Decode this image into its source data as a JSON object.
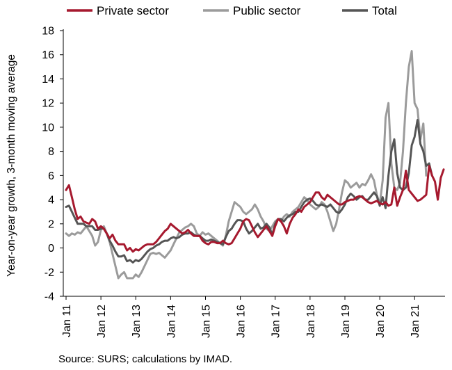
{
  "chart_data": {
    "type": "line",
    "ylabel": "Year-on-year growth, 3-month moving average",
    "xlabel": "",
    "ylim": [
      -4,
      18
    ],
    "y_ticks": [
      -4,
      -2,
      0,
      2,
      4,
      6,
      8,
      10,
      12,
      14,
      16,
      18
    ],
    "x_ticks": [
      "Jan 11",
      "Jan 12",
      "Jan 13",
      "Jan 14",
      "Jan 15",
      "Jan 16",
      "Jan 17",
      "Jan 18",
      "Jan 19",
      "Jan 20",
      "Jan 21"
    ],
    "x_start": "Jan 11",
    "x_end": "Sep 21",
    "legend_position": "top",
    "grid": false,
    "series": [
      {
        "name": "Private sector",
        "color": "#a6192e",
        "values": [
          4.8,
          5.2,
          4.2,
          3.2,
          2.4,
          2.6,
          2.2,
          2.1,
          2.0,
          2.4,
          2.2,
          1.6,
          1.8,
          1.6,
          1.2,
          0.8,
          1.1,
          0.6,
          0.3,
          0.3,
          0.3,
          -0.2,
          0.0,
          -0.3,
          -0.1,
          -0.2,
          0.0,
          0.2,
          0.3,
          0.3,
          0.3,
          0.5,
          0.8,
          1.1,
          1.4,
          1.6,
          2.0,
          1.8,
          1.6,
          1.4,
          1.2,
          1.3,
          1.5,
          1.2,
          1.0,
          1.0,
          1.0,
          0.6,
          0.4,
          0.3,
          0.5,
          0.5,
          0.4,
          0.4,
          0.6,
          0.4,
          0.3,
          0.4,
          0.8,
          1.2,
          1.6,
          2.2,
          2.4,
          2.3,
          1.8,
          1.3,
          0.9,
          1.2,
          1.5,
          1.8,
          1.4,
          1.0,
          1.8,
          2.4,
          2.2,
          1.8,
          1.2,
          2.0,
          2.5,
          2.8,
          3.2,
          3.0,
          3.4,
          3.6,
          3.8,
          4.2,
          4.6,
          4.6,
          4.2,
          4.0,
          4.4,
          4.2,
          4.0,
          3.8,
          3.6,
          3.6,
          3.8,
          3.9,
          4.0,
          4.0,
          4.2,
          4.3,
          4.2,
          4.0,
          3.8,
          3.7,
          3.8,
          3.9,
          3.7,
          3.6,
          3.8,
          3.5,
          3.6,
          5.0,
          3.5,
          4.2,
          4.8,
          6.4,
          4.8,
          4.5,
          4.2,
          3.9,
          4.0,
          4.2,
          4.4,
          6.8,
          6.0,
          5.5,
          4.0,
          5.8,
          6.5
        ]
      },
      {
        "name": "Public sector",
        "color": "#9b9b9b",
        "values": [
          1.2,
          1.0,
          1.2,
          1.1,
          1.3,
          1.2,
          1.5,
          1.8,
          1.4,
          1.0,
          0.2,
          0.5,
          1.5,
          1.8,
          1.2,
          0.5,
          -0.5,
          -1.5,
          -2.5,
          -2.2,
          -2.0,
          -2.5,
          -2.5,
          -2.5,
          -2.2,
          -2.4,
          -2.0,
          -1.5,
          -1.0,
          -0.5,
          -0.4,
          -0.5,
          -0.4,
          -0.6,
          -0.8,
          -0.5,
          -0.2,
          0.3,
          0.8,
          1.3,
          1.5,
          1.7,
          1.8,
          2.0,
          1.8,
          1.2,
          1.0,
          1.3,
          1.1,
          1.2,
          1.0,
          0.8,
          0.6,
          0.4,
          0.2,
          1.0,
          2.2,
          3.0,
          3.8,
          3.6,
          3.4,
          3.0,
          2.8,
          3.0,
          3.2,
          3.6,
          3.2,
          2.6,
          2.2,
          1.6,
          1.4,
          1.8,
          2.2,
          2.4,
          2.2,
          2.6,
          2.8,
          2.6,
          3.0,
          3.2,
          3.4,
          3.8,
          4.2,
          4.0,
          3.6,
          3.4,
          3.2,
          3.4,
          3.8,
          3.6,
          3.0,
          2.2,
          1.4,
          2.0,
          3.2,
          4.6,
          5.6,
          5.4,
          5.0,
          5.2,
          5.4,
          5.0,
          5.3,
          5.2,
          5.6,
          6.1,
          5.6,
          4.4,
          3.6,
          5.6,
          10.8,
          12.0,
          7.0,
          5.0,
          4.8,
          5.4,
          8.0,
          12.0,
          15.0,
          16.3,
          12.0,
          11.5,
          9.0,
          10.3,
          6.0
        ]
      },
      {
        "name": "Total",
        "color": "#555555",
        "values": [
          3.4,
          3.5,
          3.0,
          2.5,
          2.0,
          2.0,
          2.0,
          1.8,
          1.8,
          1.8,
          1.5,
          1.5,
          1.6,
          1.6,
          1.2,
          0.6,
          0.2,
          -0.3,
          -0.7,
          -0.7,
          -0.6,
          -1.1,
          -1.0,
          -1.2,
          -1.0,
          -1.1,
          -0.9,
          -0.6,
          -0.3,
          -0.1,
          0.0,
          0.2,
          0.3,
          0.5,
          0.6,
          0.6,
          0.8,
          0.9,
          0.8,
          0.9,
          1.1,
          1.2,
          1.2,
          1.3,
          1.1,
          1.0,
          1.0,
          0.8,
          0.6,
          0.6,
          0.7,
          0.6,
          0.5,
          0.4,
          0.3,
          0.9,
          1.4,
          1.6,
          2.0,
          2.3,
          2.3,
          2.2,
          1.6,
          1.2,
          1.4,
          1.7,
          2.0,
          1.6,
          1.7,
          2.0,
          1.7,
          1.1,
          2.0,
          2.4,
          2.4,
          2.2,
          2.5,
          2.7,
          2.8,
          3.0,
          3.0,
          3.4,
          3.8,
          4.0,
          4.1,
          3.9,
          3.6,
          3.5,
          3.6,
          3.5,
          3.4,
          3.6,
          3.3,
          3.0,
          2.9,
          3.2,
          3.6,
          4.2,
          4.5,
          4.3,
          4.0,
          4.2,
          4.3,
          4.0,
          4.0,
          4.3,
          4.6,
          4.3,
          3.5,
          4.2,
          3.3,
          6.0,
          8.0,
          9.0,
          6.2,
          5.0,
          4.8,
          5.0,
          6.2,
          8.5,
          9.2,
          10.6,
          8.6,
          8.0,
          6.8,
          7.0,
          6.0
        ]
      }
    ]
  },
  "source_note": "Source: SURS; calculations by IMAD."
}
